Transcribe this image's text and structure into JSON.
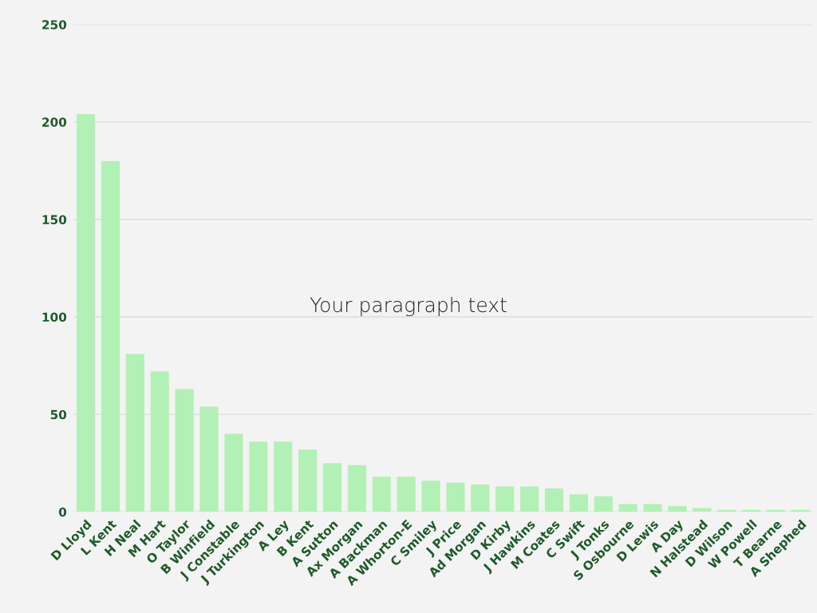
{
  "chart_data": {
    "type": "bar",
    "categories": [
      "D Lloyd",
      "L Kent",
      "H Neal",
      "M Hart",
      "O Taylor",
      "B Winfield",
      "J Constable",
      "J Turkington",
      "A Ley",
      "B Kent",
      "A Sutton",
      "Ax Morgan",
      "A Backman",
      "A Whorton-E",
      "C Smiley",
      "J Price",
      "Ad Morgan",
      "D Kirby",
      "J Hawkins",
      "M Coates",
      "C Swift",
      "J Tonks",
      "S Osbourne",
      "D Lewis",
      "A Day",
      "N Halstead",
      "D Wilson",
      "W Powell",
      "T Bearne",
      "A Shephed"
    ],
    "values": [
      204,
      180,
      81,
      72,
      63,
      54,
      40,
      36,
      36,
      32,
      25,
      24,
      18,
      18,
      16,
      15,
      14,
      13,
      13,
      12,
      9,
      8,
      4,
      4,
      3,
      2,
      1,
      1,
      1,
      1
    ],
    "color": "#b3f0b5",
    "ylim": [
      0,
      250
    ],
    "yticks": [
      0,
      50,
      100,
      150,
      200,
      250
    ],
    "grid": "y",
    "annotations": [
      "Your paragraph text"
    ]
  }
}
